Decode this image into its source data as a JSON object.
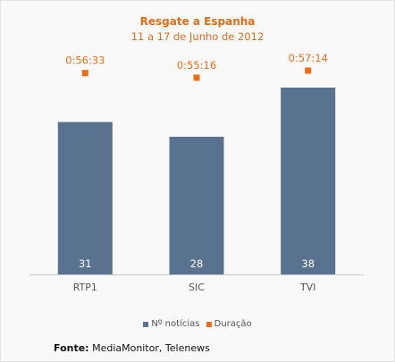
{
  "chart_data": {
    "type": "bar",
    "title": "Resgate a Espanha",
    "subtitle": "11 a 17 de Junho de 2012",
    "categories": [
      "RTP1",
      "SIC",
      "TVI"
    ],
    "series": [
      {
        "name": "Nº notícias",
        "type": "bar",
        "color": "#59728f",
        "values": [
          31,
          28,
          38
        ],
        "labels": [
          "31",
          "28",
          "38"
        ]
      },
      {
        "name": "Duração",
        "type": "scatter",
        "color": "#f26d12",
        "values": [
          "0:56:33",
          "0:55:16",
          "0:57:14"
        ],
        "seconds": [
          3393,
          3316,
          3434
        ]
      }
    ],
    "bar_ylim": [
      0,
      40
    ],
    "duration_ylim_seconds": [
      0,
      3600
    ],
    "grid": false,
    "legend": "bottom-center"
  },
  "source": {
    "label": "Fonte:",
    "text": " MediaMonitor, Telenews"
  },
  "colors": {
    "title": "#e56b14",
    "bar": "#59728f",
    "marker": "#f26d12",
    "label_text": "#ffffff",
    "axis_text": "#555555",
    "axis_line": "#c8c8c8"
  }
}
